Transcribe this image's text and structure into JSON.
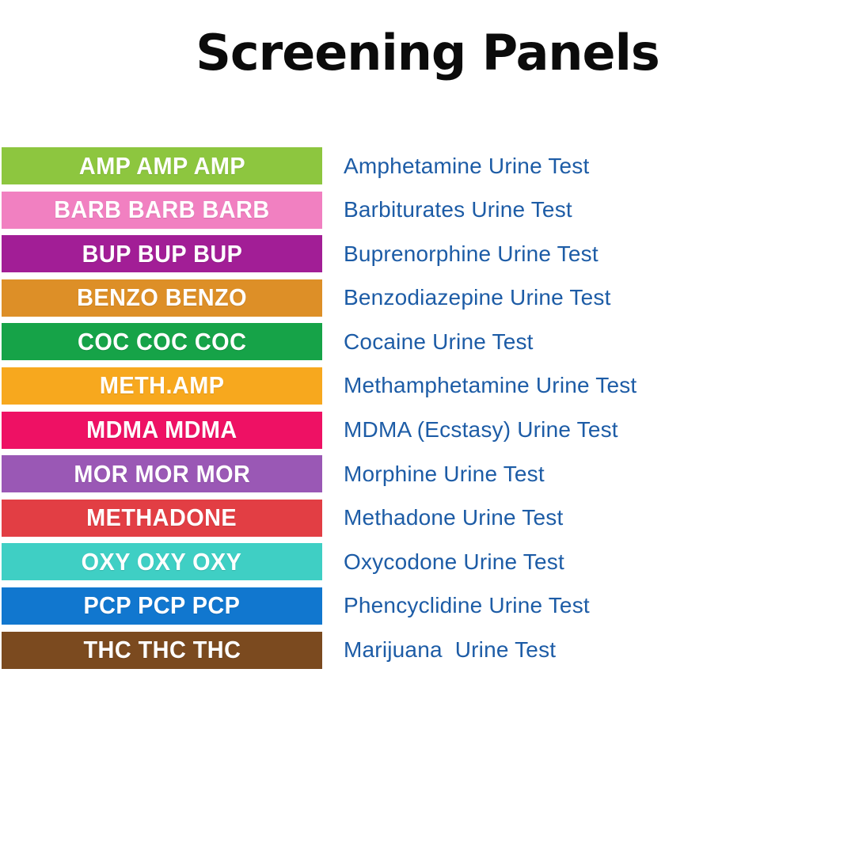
{
  "page": {
    "title": "Screening Panels",
    "background_color": "#ffffff",
    "title_color": "#0b0b0b",
    "test_label_color": "#1d5ca6",
    "band_text_color": "#ffffff"
  },
  "panels": {
    "rows": [
      {
        "band_label": "AMP AMP AMP",
        "band_color": "#8dc63f",
        "test_name": "Amphetamine Urine Test"
      },
      {
        "band_label": "BARB BARB BARB",
        "band_color": "#f180c1",
        "test_name": "Barbiturates Urine Test"
      },
      {
        "band_label": "BUP BUP BUP",
        "band_color": "#a21e96",
        "test_name": "Buprenorphine Urine Test"
      },
      {
        "band_label": "BENZO BENZO",
        "band_color": "#dd8f27",
        "test_name": "Benzodiazepine Urine Test"
      },
      {
        "band_label": "COC COC COC",
        "band_color": "#16a348",
        "test_name": "Cocaine Urine Test"
      },
      {
        "band_label": "METH.AMP",
        "band_color": "#f7a81e",
        "test_name": "Methamphetamine Urine Test"
      },
      {
        "band_label": "MDMA MDMA",
        "band_color": "#ee1164",
        "test_name": "MDMA (Ecstasy) Urine Test"
      },
      {
        "band_label": "MOR MOR MOR",
        "band_color": "#9a58b5",
        "test_name": "Morphine Urine Test"
      },
      {
        "band_label": "METHADONE",
        "band_color": "#e23e44",
        "test_name": "Methadone Urine Test"
      },
      {
        "band_label": "OXY OXY OXY",
        "band_color": "#3fcfc4",
        "test_name": "Oxycodone Urine Test"
      },
      {
        "band_label": "PCP PCP PCP",
        "band_color": "#1177cf",
        "test_name": "Phencyclidine Urine Test"
      },
      {
        "band_label": "THC THC THC",
        "band_color": "#7b4a1f",
        "test_name": "Marijuana  Urine Test"
      }
    ]
  }
}
